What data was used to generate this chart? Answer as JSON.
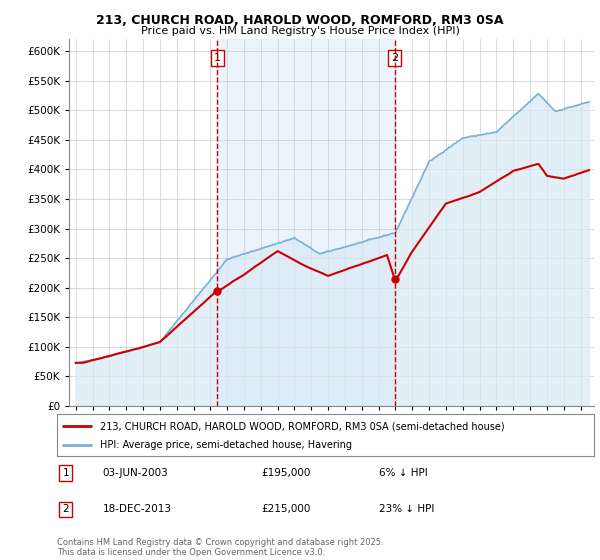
{
  "title_line1": "213, CHURCH ROAD, HAROLD WOOD, ROMFORD, RM3 0SA",
  "title_line2": "Price paid vs. HM Land Registry's House Price Index (HPI)",
  "ytick_values": [
    0,
    50000,
    100000,
    150000,
    200000,
    250000,
    300000,
    350000,
    400000,
    450000,
    500000,
    550000,
    600000
  ],
  "hpi_color": "#7ab0d8",
  "hpi_fill_color": "#d8e9f5",
  "price_color": "#cc0000",
  "vline_color": "#cc0000",
  "shade_color": "#dceef8",
  "annotation1_label": "1",
  "annotation1_date": "03-JUN-2003",
  "annotation1_price": "£195,000",
  "annotation1_hpi": "6% ↓ HPI",
  "annotation2_label": "2",
  "annotation2_date": "18-DEC-2013",
  "annotation2_price": "£215,000",
  "annotation2_hpi": "23% ↓ HPI",
  "legend_line1": "213, CHURCH ROAD, HAROLD WOOD, ROMFORD, RM3 0SA (semi-detached house)",
  "legend_line2": "HPI: Average price, semi-detached house, Havering",
  "footer": "Contains HM Land Registry data © Crown copyright and database right 2025.\nThis data is licensed under the Open Government Licence v3.0.",
  "vline1_year": 2003.42,
  "vline2_year": 2013.96,
  "sale1_year": 2003.42,
  "sale1_price": 195000,
  "sale2_year": 2013.96,
  "sale2_price": 215000
}
